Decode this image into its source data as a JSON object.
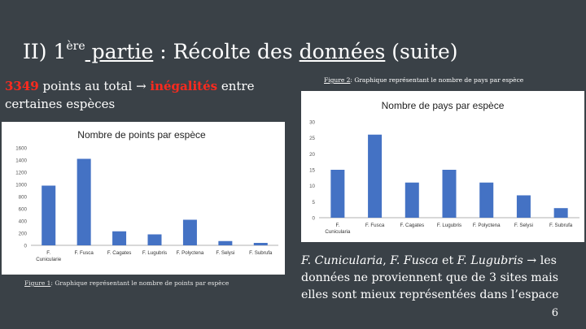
{
  "slide": {
    "title_prefix": "II) 1",
    "title_sup": "ère",
    "title_part": " partie",
    "title_rest": " : Récolte des ",
    "title_donnees": "données",
    "title_suffix": " (suite)",
    "subtitle_number": "3349",
    "subtitle_mid": " points au total → ",
    "subtitle_bold": "inégalités",
    "subtitle_end": " entre certaines espèces",
    "caption1_label": "Figure 1",
    "caption1_text": ": Graphique représentant le nombre de points par espèce",
    "caption2_label": "Figure 2",
    "caption2_text": ": Graphique représentant le nombre de pays par espèce",
    "conclusion": {
      "sp1": "F. Cunicularia",
      "c1": ", ",
      "sp2": "F. Fusca",
      "c2": " et ",
      "sp3": "F. Lugubris",
      "rest": " → les données ne proviennent que de 3 sites mais elles sont mieux représentées dans l’espace"
    },
    "page_number": "6"
  },
  "chart_data": [
    {
      "type": "bar",
      "title": "Nombre de points par espèce",
      "categories": [
        "F. Cunicularie",
        "F. Fusca",
        "F. Cagates",
        "F. Lugubris",
        "F. Polyctena",
        "F. Selysi",
        "F. Subrufa"
      ],
      "values": [
        980,
        1420,
        230,
        180,
        420,
        70,
        40
      ],
      "ylim": [
        0,
        1600
      ],
      "yticks": [
        "0",
        "200",
        "400",
        "600",
        "800",
        "1000",
        "1200",
        "1400",
        "1600"
      ],
      "bar_color": "#4472c4",
      "grid": false,
      "legend": "none"
    },
    {
      "type": "bar",
      "title": "Nombre de pays par espèce",
      "categories": [
        "F. Cunicularia",
        "F. Fusca",
        "F. Cagates",
        "F. Lugubris",
        "F. Polyctena",
        "F. Selysi",
        "F. Subrufa"
      ],
      "values": [
        15,
        26,
        11,
        15,
        11,
        7,
        3
      ],
      "ylim": [
        0,
        30
      ],
      "yticks": [
        "0",
        "5",
        "10",
        "15",
        "20",
        "25",
        "30"
      ],
      "bar_color": "#4472c4",
      "grid": false,
      "legend": "none"
    }
  ]
}
